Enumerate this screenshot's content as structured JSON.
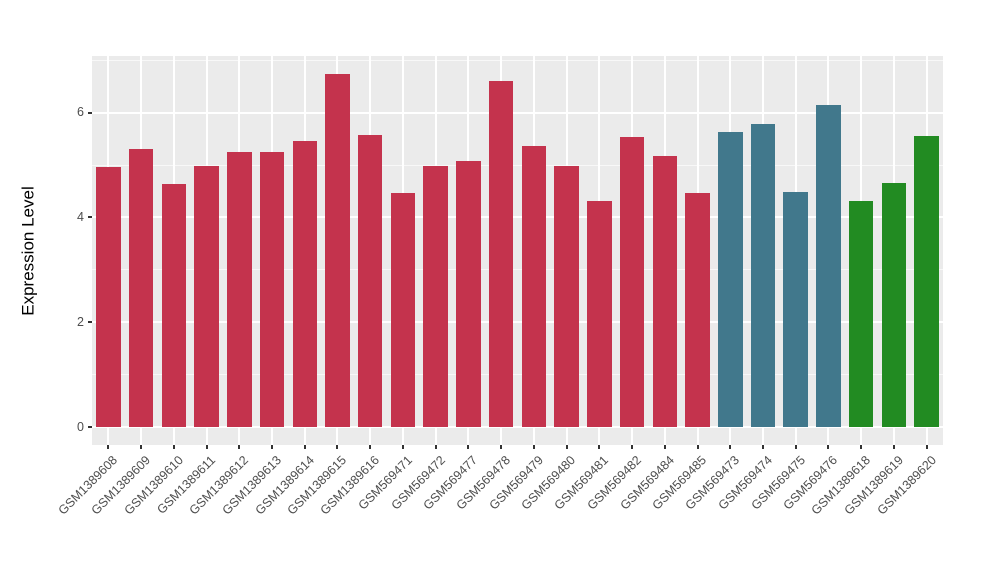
{
  "chart_data": {
    "type": "bar",
    "title": "",
    "xlabel": "",
    "ylabel": "Expression Level",
    "yticks": [
      0,
      2,
      4,
      6
    ],
    "minor_ticks": [
      1,
      3,
      5,
      7
    ],
    "ylim": [
      -0.34,
      7.08
    ],
    "grid": true,
    "legend_position": "none",
    "categories": [
      "GSM1389608",
      "GSM1389609",
      "GSM1389610",
      "GSM1389611",
      "GSM1389612",
      "GSM1389613",
      "GSM1389614",
      "GSM1389615",
      "GSM1389616",
      "GSM569471",
      "GSM569472",
      "GSM569477",
      "GSM569478",
      "GSM569479",
      "GSM569480",
      "GSM569481",
      "GSM569482",
      "GSM569484",
      "GSM569485",
      "GSM569473",
      "GSM569474",
      "GSM569475",
      "GSM569476",
      "GSM1389618",
      "GSM1389619",
      "GSM1389620"
    ],
    "values": [
      4.96,
      5.31,
      4.64,
      4.99,
      5.25,
      5.24,
      5.46,
      6.73,
      5.57,
      4.47,
      4.99,
      5.07,
      6.6,
      5.36,
      4.98,
      4.31,
      5.53,
      5.17,
      4.47,
      5.63,
      5.78,
      4.48,
      6.14,
      4.31,
      4.66,
      5.55
    ],
    "bar_groups": [
      "red",
      "red",
      "red",
      "red",
      "red",
      "red",
      "red",
      "red",
      "red",
      "red",
      "red",
      "red",
      "red",
      "red",
      "red",
      "red",
      "red",
      "red",
      "red",
      "teal",
      "teal",
      "teal",
      "teal",
      "green",
      "green",
      "green"
    ],
    "palette": {
      "red": "#C4334D",
      "teal": "#41788C",
      "green": "#228B22"
    },
    "panel_bg": "#EBEBEB",
    "grid_color": "#FFFFFF",
    "axis_text_color": "#4D4D4D",
    "tick_color": "#333333"
  }
}
